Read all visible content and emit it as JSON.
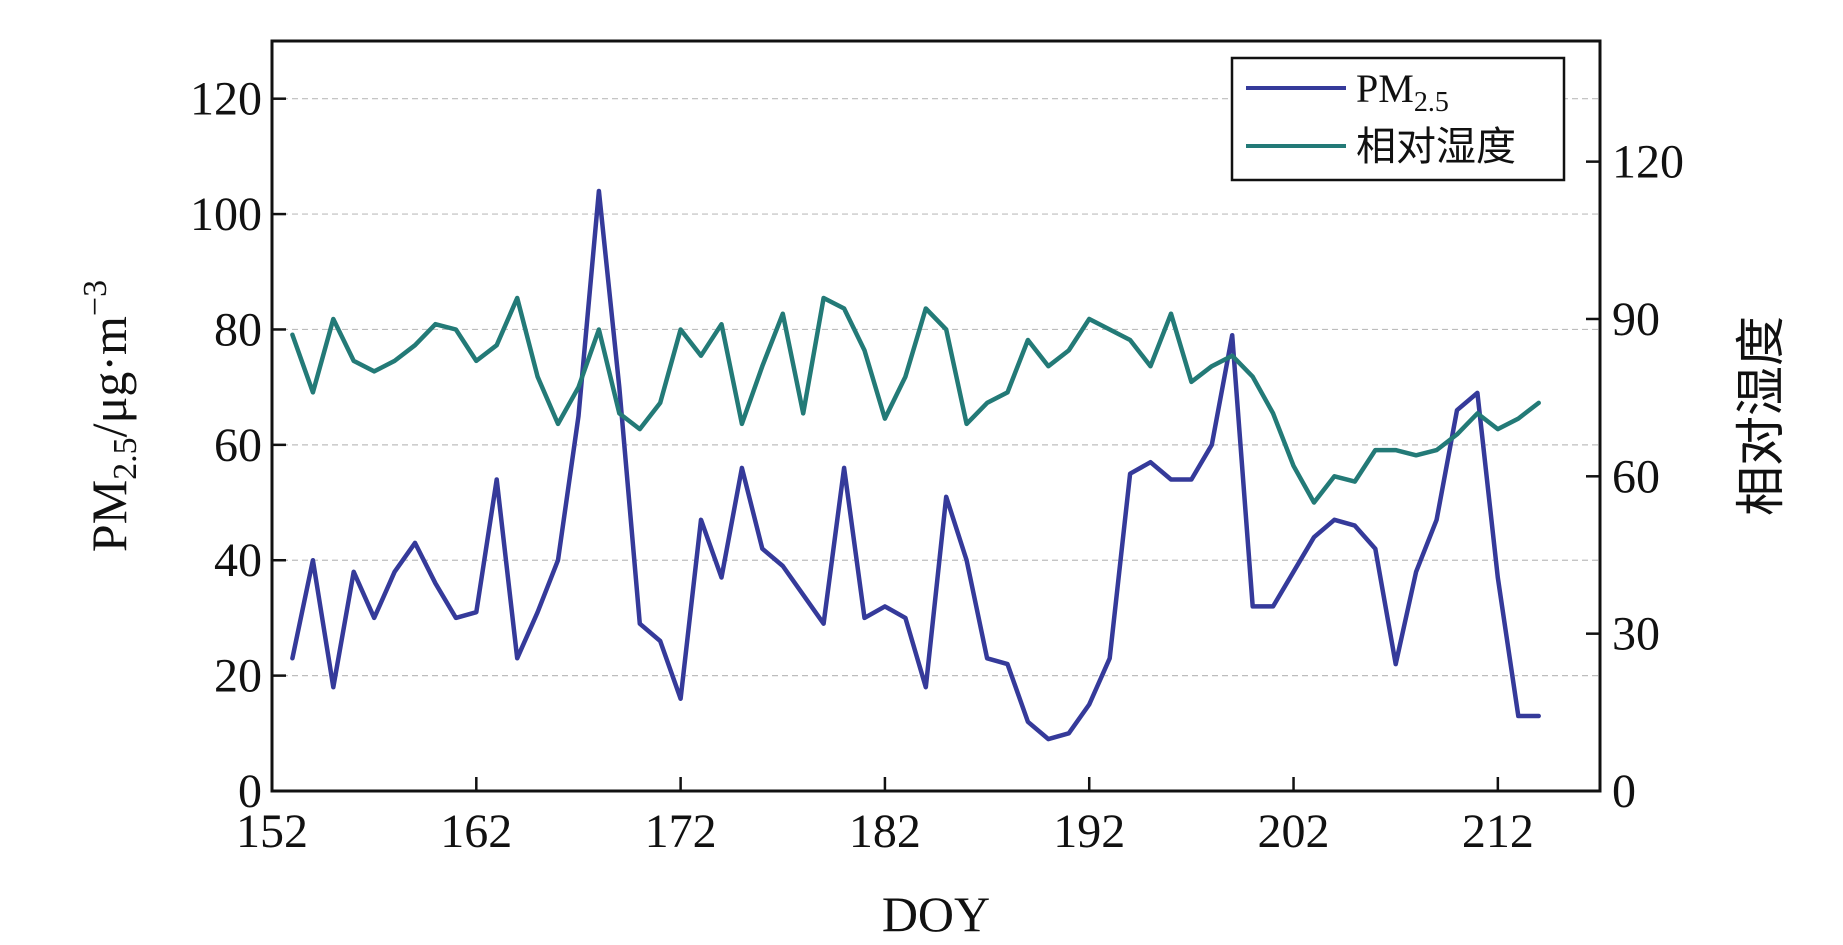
{
  "chart_data": {
    "type": "line",
    "xlabel": "DOY",
    "ylabel": {
      "main": "PM",
      "sub": "2.5",
      "rest": "/μg·m",
      "sup": "−3"
    },
    "ylabel_right": "相对湿度",
    "xlim": [
      152,
      217
    ],
    "ylim": [
      0,
      130
    ],
    "ylim_right": [
      0,
      143
    ],
    "xticks": [
      152,
      162,
      172,
      182,
      192,
      202,
      212
    ],
    "yticks": [
      0,
      20,
      40,
      60,
      80,
      100,
      120
    ],
    "yticks_right": [
      0,
      30,
      60,
      90,
      120
    ],
    "grid": "horizontal dashed",
    "legend_position": "top-right",
    "series": [
      {
        "name": "PM2.5",
        "legend_main": "PM",
        "legend_sub": "2.5",
        "axis": "left",
        "color": "#353a9a",
        "x": [
          153,
          154,
          155,
          156,
          157,
          158,
          159,
          160,
          161,
          162,
          163,
          164,
          165,
          166,
          167,
          168,
          169,
          170,
          171,
          172,
          173,
          174,
          175,
          176,
          177,
          178,
          179,
          180,
          181,
          182,
          183,
          184,
          185,
          186,
          187,
          188,
          189,
          190,
          191,
          192,
          193,
          194,
          195,
          196,
          197,
          198,
          199,
          200,
          201,
          202,
          203,
          204,
          205,
          206,
          207,
          208,
          209,
          210,
          211,
          212,
          213,
          214
        ],
        "values": [
          23,
          40,
          18,
          38,
          30,
          38,
          43,
          36,
          30,
          31,
          54,
          23,
          31,
          40,
          65,
          104,
          70,
          29,
          26,
          16,
          47,
          37,
          56,
          42,
          39,
          34,
          29,
          56,
          30,
          32,
          30,
          18,
          51,
          40,
          23,
          22,
          12,
          9,
          10,
          15,
          23,
          55,
          57,
          54,
          54,
          60,
          79,
          32,
          32,
          38,
          44,
          47,
          46,
          42,
          22,
          38,
          47,
          66,
          69,
          37,
          13,
          13
        ]
      },
      {
        "name": "相对湿度",
        "axis": "right",
        "color": "#237a77",
        "x": [
          153,
          154,
          155,
          156,
          157,
          158,
          159,
          160,
          161,
          162,
          163,
          164,
          165,
          166,
          167,
          168,
          169,
          170,
          171,
          172,
          173,
          174,
          175,
          176,
          177,
          178,
          179,
          180,
          181,
          182,
          183,
          184,
          185,
          186,
          187,
          188,
          189,
          190,
          191,
          192,
          193,
          194,
          195,
          196,
          197,
          198,
          199,
          200,
          201,
          202,
          203,
          204,
          205,
          206,
          207,
          208,
          209,
          210,
          211,
          212,
          213,
          214
        ],
        "values": [
          87,
          76,
          90,
          82,
          80,
          82,
          85,
          89,
          88,
          82,
          85,
          94,
          79,
          70,
          77,
          88,
          72,
          69,
          74,
          88,
          83,
          89,
          70,
          81,
          91,
          72,
          94,
          92,
          84,
          71,
          79,
          92,
          88,
          70,
          74,
          76,
          86,
          81,
          84,
          90,
          88,
          86,
          81,
          91,
          78,
          81,
          83,
          79,
          72,
          62,
          55,
          60,
          59,
          65,
          65,
          64,
          65,
          68,
          72,
          69,
          71,
          74
        ]
      }
    ]
  }
}
